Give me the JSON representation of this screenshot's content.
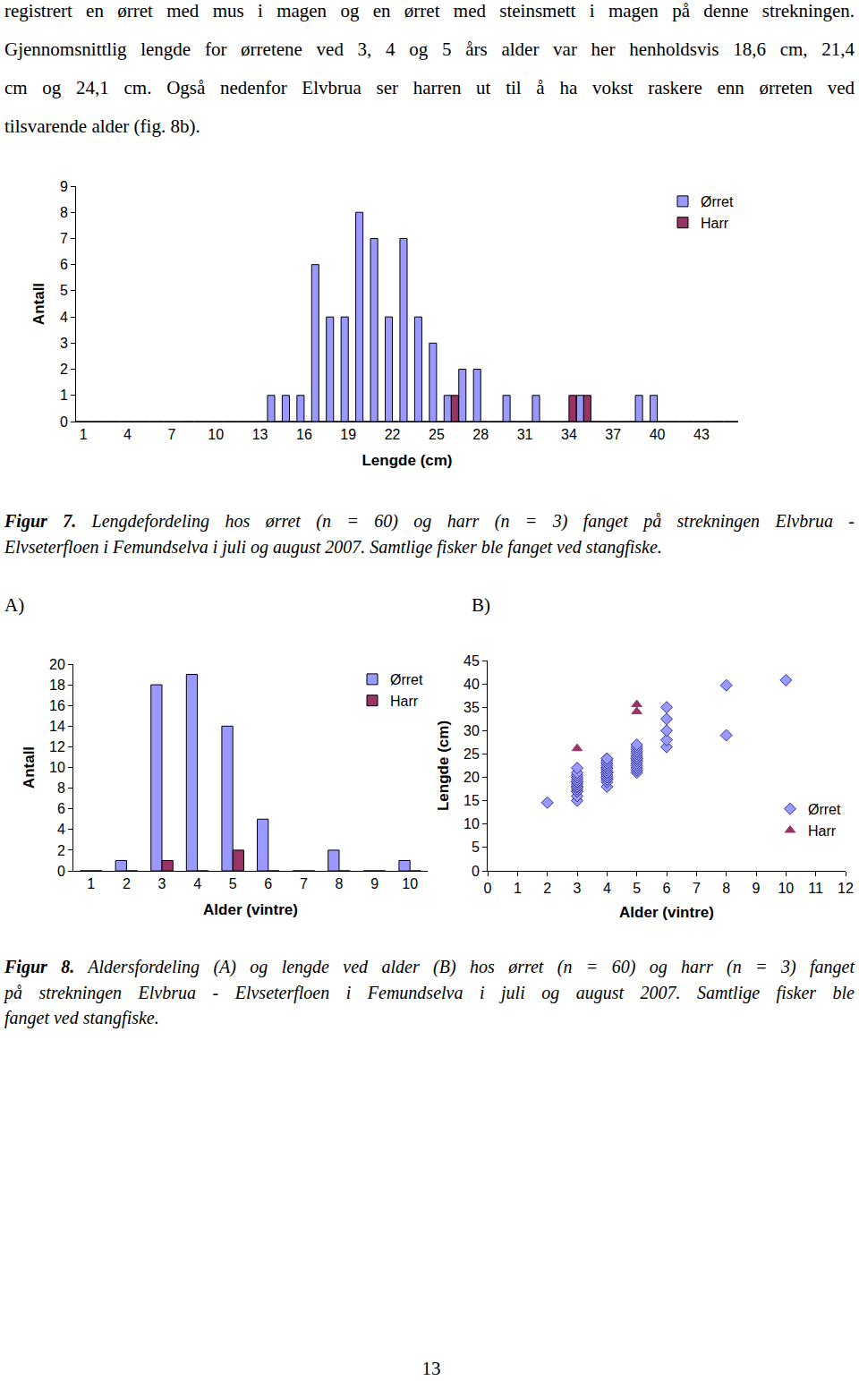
{
  "paragraph_lines": [
    "registrert en ørret med mus i magen og en ørret med steinsmett i magen på denne strekningen.",
    "Gjennomsnittlig lengde for ørretene ved 3, 4 og 5 års alder var her henholdsvis 18,6 cm, 21,4",
    "cm og 24,1 cm. Også nedenfor Elvbrua ser harren ut til å ha vokst raskere enn ørreten ved",
    "tilsvarende alder (fig. 8b)."
  ],
  "chart_data": [
    {
      "type": "bar",
      "x_label": "Lengde (cm)",
      "y_label": "Antall",
      "categories": [
        1,
        null,
        null,
        4,
        null,
        null,
        7,
        null,
        null,
        10,
        null,
        null,
        13,
        null,
        null,
        16,
        null,
        null,
        19,
        null,
        null,
        22,
        null,
        null,
        25,
        null,
        null,
        28,
        null,
        null,
        31,
        null,
        null,
        34,
        null,
        null,
        37,
        null,
        null,
        40,
        null,
        null,
        43,
        null,
        null
      ],
      "series": [
        {
          "name": "Ørret",
          "color": "#9999ff",
          "values": [
            0,
            0,
            0,
            0,
            0,
            0,
            0,
            0,
            0,
            0,
            0,
            0,
            0,
            1,
            1,
            1,
            6,
            4,
            4,
            8,
            7,
            4,
            7,
            4,
            3,
            1,
            2,
            2,
            0,
            1,
            0,
            1,
            0,
            0,
            1,
            0,
            0,
            0,
            1,
            1,
            0,
            0,
            0,
            0,
            0
          ]
        },
        {
          "name": "Harr",
          "color": "#993366",
          "values": [
            0,
            0,
            0,
            0,
            0,
            0,
            0,
            0,
            0,
            0,
            0,
            0,
            0,
            0,
            0,
            0,
            0,
            0,
            0,
            0,
            0,
            0,
            0,
            0,
            0,
            1,
            0,
            0,
            0,
            0,
            0,
            0,
            0,
            1,
            1,
            0,
            0,
            0,
            0,
            0,
            0,
            0,
            0,
            0,
            0
          ]
        }
      ],
      "ylim": [
        0,
        9
      ],
      "yticks": [
        0,
        1,
        2,
        3,
        4,
        5,
        6,
        7,
        8,
        9
      ],
      "grid": false,
      "legend": "top right"
    },
    {
      "type": "bar",
      "x_label": "Alder (vintre)",
      "y_label": "Antall",
      "categories": [
        1,
        2,
        3,
        4,
        5,
        6,
        7,
        8,
        9,
        10
      ],
      "series": [
        {
          "name": "Ørret",
          "color": "#9999ff",
          "values": [
            0,
            1,
            18,
            19,
            14,
            5,
            0,
            2,
            0,
            1
          ]
        },
        {
          "name": "Harr",
          "color": "#993366",
          "values": [
            0,
            0,
            1,
            0,
            2,
            0,
            0,
            0,
            0,
            0
          ]
        }
      ],
      "ylim": [
        0,
        20
      ],
      "yticks": [
        0,
        2,
        4,
        6,
        8,
        10,
        12,
        14,
        16,
        18,
        20
      ],
      "grid": false,
      "legend": "top right"
    },
    {
      "type": "scatter",
      "x_label": "Alder (vintre)",
      "y_label": "Lengde (cm)",
      "series": [
        {
          "name": "Ørret",
          "color": "#9999ff",
          "marker": "diamond",
          "x": [
            2,
            3,
            3,
            3,
            3,
            3,
            3,
            3,
            3,
            3,
            3,
            3,
            3,
            3,
            3,
            3,
            3,
            3,
            3,
            4,
            4,
            4,
            4,
            4,
            4,
            4,
            4,
            4,
            4,
            4,
            4,
            4,
            4,
            4,
            4,
            4,
            4,
            4,
            5,
            5,
            5,
            5,
            5,
            5,
            5,
            5,
            5,
            5,
            5,
            5,
            5,
            5,
            6,
            6,
            6,
            6,
            6,
            8,
            8,
            10
          ],
          "y": [
            14.6,
            15,
            16,
            17,
            17,
            17.5,
            18,
            18,
            18,
            18.5,
            19,
            19,
            19,
            19.5,
            20,
            20,
            20.5,
            21,
            22,
            18,
            19,
            19.5,
            20,
            20,
            20.5,
            21,
            21,
            21,
            21.5,
            22,
            22,
            22,
            22.5,
            23,
            23,
            23.5,
            24,
            24,
            21,
            21.5,
            22,
            22.5,
            23,
            23.5,
            24,
            24,
            24.5,
            25,
            25.5,
            26,
            26.5,
            27,
            26.5,
            28,
            30,
            32.5,
            35,
            29,
            39.7,
            40.8
          ]
        },
        {
          "name": "Harr",
          "color": "#993366",
          "marker": "triangle-up",
          "x": [
            3,
            5,
            5
          ],
          "y": [
            26.2,
            35.6,
            34.1
          ]
        }
      ],
      "xlim": [
        0,
        12
      ],
      "xticks": [
        0,
        1,
        2,
        3,
        4,
        5,
        6,
        7,
        8,
        9,
        10,
        11,
        12
      ],
      "ylim": [
        0,
        45
      ],
      "yticks": [
        0,
        5,
        10,
        15,
        20,
        25,
        30,
        35,
        40,
        45
      ],
      "grid": false,
      "legend": "lower right"
    }
  ],
  "captions": [
    {
      "label": "Figur 7.",
      "lines": [
        "Lengdefordeling hos ørret (n = 60) og harr (n = 3) fanget på strekningen Elvbrua -",
        "Elvseterfloen i Femundselva i juli og august 2007. Samtlige fisker ble fanget ved stangfiske."
      ]
    },
    {
      "label": "Figur 8.",
      "lines": [
        "Aldersfordeling (A) og lengde ved alder (B) hos ørret (n = 60) og harr (n = 3) fanget",
        "på strekningen Elvbrua - Elvseterfloen i Femundselva i juli og august 2007. Samtlige fisker ble",
        "fanget ved stangfiske."
      ]
    }
  ],
  "panel_labels": [
    "A)",
    "B)"
  ],
  "page_number": "13"
}
